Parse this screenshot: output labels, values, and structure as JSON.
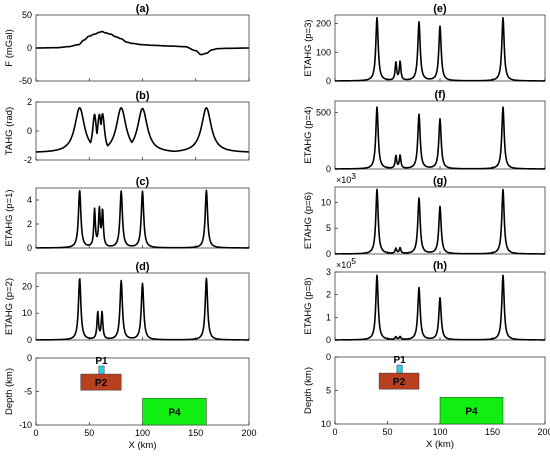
{
  "colors": {
    "line": "#000000",
    "p1": "#29d3e8",
    "p2": "#b8401f",
    "p4": "#11ee11"
  },
  "chart_data": [
    {
      "id": "a",
      "type": "line",
      "title": "(a)",
      "ylabel": "F (mGal)",
      "xlim": [
        0,
        200
      ],
      "ylim": [
        -50,
        50
      ],
      "yticks": [
        "-50",
        "0",
        "50"
      ],
      "yticks_values": [
        -50,
        0,
        50
      ],
      "xticks": [],
      "exponent": "",
      "series": [
        {
          "shape": "gravity",
          "x": [
            0,
            20,
            30,
            40,
            45,
            50,
            55,
            60,
            62,
            65,
            70,
            75,
            80,
            85,
            90,
            100,
            110,
            125,
            140,
            150,
            155,
            160,
            165,
            170,
            180,
            200
          ],
          "y": [
            0,
            0.5,
            2,
            5,
            12,
            18,
            21,
            24,
            25,
            23,
            21,
            17,
            14,
            9,
            7,
            5,
            4,
            3,
            2,
            -4,
            -10,
            -8,
            -3,
            -1,
            -0.5,
            0
          ]
        }
      ]
    },
    {
      "id": "b",
      "type": "line",
      "title": "(b)",
      "ylabel": "TAHG (rad)",
      "xlim": [
        0,
        200
      ],
      "ylim": [
        -2,
        2
      ],
      "yticks": [
        "-2",
        "0",
        "2"
      ],
      "yticks_values": [
        -2,
        0,
        2
      ],
      "xticks": [],
      "exponent": "",
      "series": [
        {
          "shape": "tahg",
          "x": [
            0,
            41,
            55,
            59.5,
            62.5,
            80,
            100,
            160,
            200
          ],
          "y": [
            -1.5,
            1.6,
            1.15,
            1.15,
            1.2,
            1.6,
            1.55,
            1.6,
            -1.5
          ]
        }
      ]
    },
    {
      "id": "c",
      "type": "line",
      "title": "(c)",
      "ylabel": "ETAHG (p=1)",
      "xlim": [
        0,
        200
      ],
      "ylim": [
        0,
        5
      ],
      "yticks": [
        "0",
        "2",
        "4"
      ],
      "yticks_values": [
        0,
        2,
        4
      ],
      "xticks": [],
      "exponent": "",
      "series": [
        {
          "shape": "peaks",
          "x": [
            41,
            55,
            59.5,
            62.5,
            80,
            100,
            160
          ],
          "y": [
            4.8,
            3.1,
            3.1,
            3.0,
            4.7,
            4.7,
            4.8
          ]
        }
      ]
    },
    {
      "id": "d",
      "type": "line",
      "title": "(d)",
      "ylabel": "ETAHG (p=2)",
      "xlim": [
        0,
        200
      ],
      "ylim": [
        0,
        25
      ],
      "yticks": [
        "0",
        "10",
        "20"
      ],
      "yticks_values": [
        0,
        10,
        20
      ],
      "xticks": [],
      "exponent": "",
      "series": [
        {
          "shape": "peaks",
          "x": [
            41,
            58,
            62,
            80,
            100,
            160
          ],
          "y": [
            23,
            10,
            10,
            22,
            21,
            23
          ]
        }
      ]
    },
    {
      "id": "e",
      "type": "line",
      "title": "(e)",
      "ylabel": "ETAHG (p=3)",
      "xlim": [
        0,
        200
      ],
      "ylim": [
        0,
        230
      ],
      "yticks": [
        "0",
        "100",
        "200"
      ],
      "yticks_values": [
        0,
        100,
        200
      ],
      "xticks": [],
      "exponent": "",
      "series": [
        {
          "shape": "peaks",
          "x": [
            40,
            58,
            62,
            80,
            100,
            160
          ],
          "y": [
            220,
            62,
            65,
            205,
            190,
            220
          ]
        }
      ]
    },
    {
      "id": "f",
      "type": "line",
      "title": "(f)",
      "ylabel": "ETAHG (p=4)",
      "xlim": [
        0,
        200
      ],
      "ylim": [
        0,
        600
      ],
      "yticks": [
        "0",
        "500"
      ],
      "yticks_values": [
        0,
        500
      ],
      "xticks": [],
      "exponent": "",
      "series": [
        {
          "shape": "peaks",
          "x": [
            40,
            58,
            62,
            80,
            100,
            160
          ],
          "y": [
            545,
            110,
            115,
            480,
            440,
            545
          ]
        }
      ]
    },
    {
      "id": "g",
      "type": "line",
      "title": "(g)",
      "ylabel": "ETAHG (p=6)",
      "xlim": [
        0,
        200
      ],
      "ylim": [
        0,
        13
      ],
      "yticks": [
        "0",
        "5",
        "10"
      ],
      "yticks_values": [
        0,
        5,
        10
      ],
      "xticks": [],
      "exponent": "3",
      "series": [
        {
          "shape": "peaks",
          "x": [
            40,
            58,
            62,
            80,
            100,
            160
          ],
          "y": [
            12.5,
            1.0,
            1.1,
            10.8,
            9.2,
            12.5
          ]
        }
      ]
    },
    {
      "id": "h",
      "type": "line",
      "title": "(h)",
      "ylabel": "ETAHG (p=8)",
      "xlim": [
        0,
        200
      ],
      "ylim": [
        0,
        3
      ],
      "yticks": [
        "0",
        "1",
        "2",
        "3"
      ],
      "yticks_values": [
        0,
        1,
        2,
        3
      ],
      "xticks": [],
      "exponent": "5",
      "series": [
        {
          "shape": "peaks",
          "x": [
            40,
            58,
            62,
            80,
            100,
            160
          ],
          "y": [
            2.85,
            0.12,
            0.13,
            2.3,
            1.85,
            2.85
          ]
        }
      ]
    },
    {
      "id": "model-left",
      "type": "model",
      "title": "",
      "ylabel": "Depth (km)",
      "xlabel": "X (km)",
      "xlim": [
        0,
        200
      ],
      "ylim": [
        -10,
        0
      ],
      "yticks": [
        "-10",
        "-5",
        "0"
      ],
      "yticks_values": [
        -10,
        -5,
        0
      ],
      "xticks": [
        "0",
        "50",
        "100",
        "150",
        "200"
      ],
      "exponent": "",
      "bodies": [
        {
          "label": "P1",
          "x": [
            59,
            64
          ],
          "depth": [
            1.2,
            2.4
          ]
        },
        {
          "label": "P2",
          "x": [
            42,
            80
          ],
          "depth": [
            2.4,
            4.8
          ]
        },
        {
          "label": "P4",
          "x": [
            100,
            160
          ],
          "depth": [
            6.0,
            10.0
          ]
        }
      ]
    },
    {
      "id": "model-right",
      "type": "model",
      "title": "",
      "ylabel": "Depth (km)",
      "xlabel": "X (km)",
      "xlim": [
        0,
        200
      ],
      "ylim": [
        0,
        10
      ],
      "yticks": [
        "0",
        "5",
        "10"
      ],
      "yticks_values": [
        0,
        5,
        10
      ],
      "xticks": [
        "0",
        "50",
        "100",
        "150",
        "200"
      ],
      "exponent": "",
      "bodies": [
        {
          "label": "P1",
          "x": [
            59,
            64
          ],
          "depth": [
            1.2,
            2.4
          ]
        },
        {
          "label": "P2",
          "x": [
            42,
            80
          ],
          "depth": [
            2.4,
            4.8
          ]
        },
        {
          "label": "P4",
          "x": [
            100,
            160
          ],
          "depth": [
            6.0,
            10.0
          ]
        }
      ]
    }
  ]
}
